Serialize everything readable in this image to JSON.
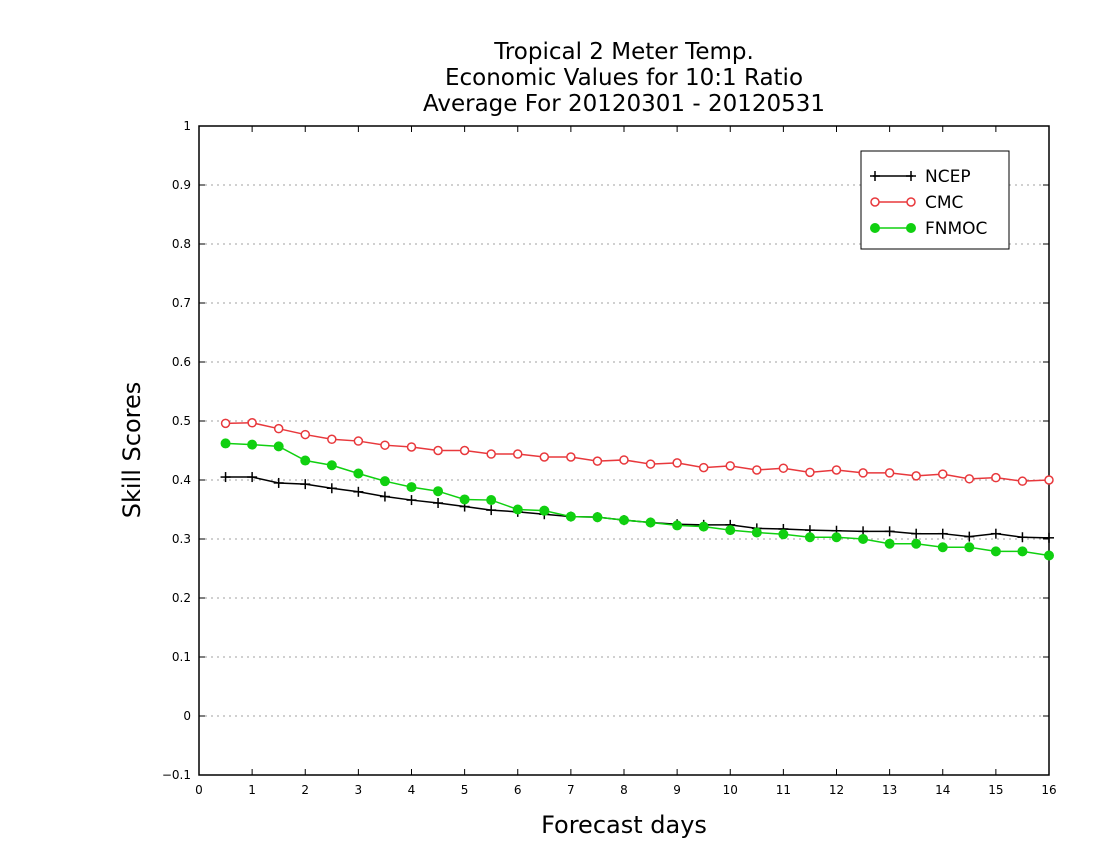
{
  "chart_data": {
    "type": "line",
    "title": [
      "Tropical 2 Meter Temp.",
      "Economic Values for 10:1 Ratio",
      "Average For 20120301 - 20120531"
    ],
    "xlabel": "Forecast days",
    "ylabel": "Skill Scores",
    "xlim": [
      0,
      16
    ],
    "ylim": [
      -0.1,
      1
    ],
    "xticks": [
      0,
      1,
      2,
      3,
      4,
      5,
      6,
      7,
      8,
      9,
      10,
      11,
      12,
      13,
      14,
      15,
      16
    ],
    "yticks": [
      -0.1,
      0,
      0.1,
      0.2,
      0.3,
      0.4,
      0.5,
      0.6,
      0.7,
      0.8,
      0.9,
      1
    ],
    "ytick_labels": [
      "−0.1",
      "0",
      "0.1",
      "0.2",
      "0.3",
      "0.4",
      "0.5",
      "0.6",
      "0.7",
      "0.8",
      "0.9",
      "1"
    ],
    "grid": true,
    "legend_position": "top-right",
    "x": [
      0.5,
      1,
      1.5,
      2,
      2.5,
      3,
      3.5,
      4,
      4.5,
      5,
      5.5,
      6,
      6.5,
      7,
      7.5,
      8,
      8.5,
      9,
      9.5,
      10,
      10.5,
      11,
      11.5,
      12,
      12.5,
      13,
      13.5,
      14,
      14.5,
      15,
      15.5,
      16
    ],
    "series": [
      {
        "name": "NCEP",
        "color": "#000000",
        "marker": "plus",
        "values": [
          0.405,
          0.405,
          0.395,
          0.393,
          0.386,
          0.38,
          0.372,
          0.366,
          0.361,
          0.355,
          0.349,
          0.346,
          0.342,
          0.338,
          0.337,
          0.332,
          0.328,
          0.325,
          0.324,
          0.324,
          0.318,
          0.317,
          0.315,
          0.314,
          0.313,
          0.313,
          0.309,
          0.309,
          0.304,
          0.309,
          0.303,
          0.302
        ]
      },
      {
        "name": "CMC",
        "color": "#e8383c",
        "marker": "open-circle",
        "values": [
          0.496,
          0.497,
          0.487,
          0.477,
          0.469,
          0.466,
          0.459,
          0.456,
          0.45,
          0.45,
          0.444,
          0.444,
          0.439,
          0.439,
          0.432,
          0.434,
          0.427,
          0.429,
          0.421,
          0.424,
          0.417,
          0.42,
          0.413,
          0.417,
          0.412,
          0.412,
          0.407,
          0.41,
          0.402,
          0.404,
          0.398,
          0.4
        ]
      },
      {
        "name": "FNMOC",
        "color": "#10d010",
        "marker": "filled-circle",
        "values": [
          0.462,
          0.46,
          0.457,
          0.433,
          0.425,
          0.411,
          0.398,
          0.388,
          0.381,
          0.367,
          0.366,
          0.35,
          0.348,
          0.338,
          0.337,
          0.332,
          0.328,
          0.323,
          0.321,
          0.315,
          0.311,
          0.308,
          0.303,
          0.303,
          0.3,
          0.292,
          0.292,
          0.286,
          0.286,
          0.279,
          0.279,
          0.272
        ]
      }
    ]
  }
}
